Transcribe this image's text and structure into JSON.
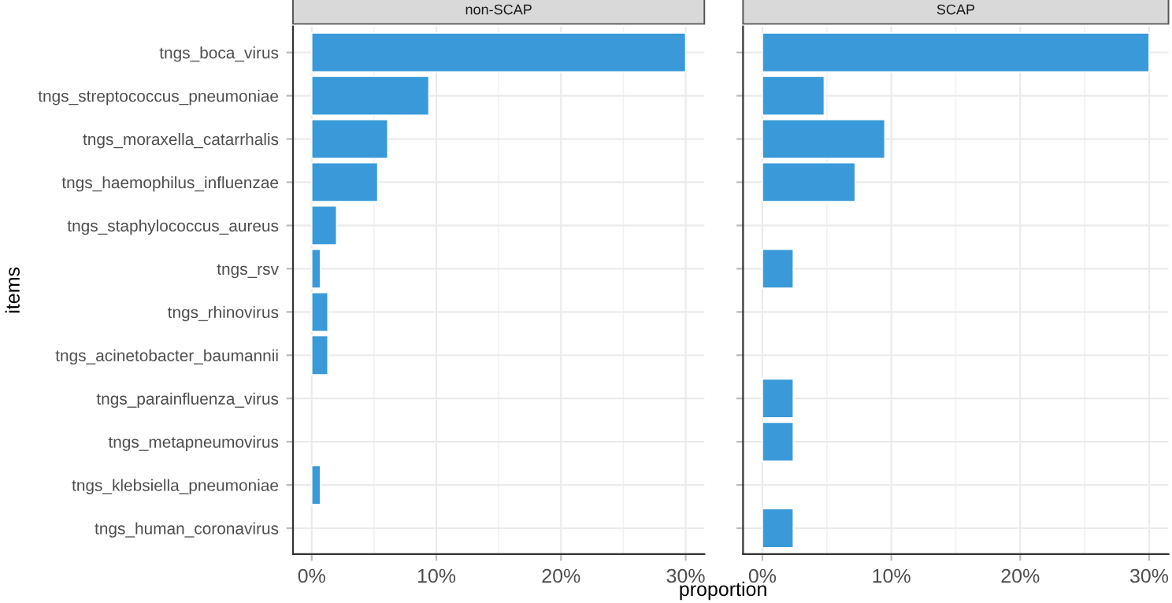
{
  "chart_data": [
    {
      "type": "bar",
      "orientation": "horizontal",
      "title": "non-SCAP",
      "ylabel": "items",
      "xlabel": "proportion",
      "categories": [
        "tngs_boca_virus",
        "tngs_streptococcus_pneumoniae",
        "tngs_moraxella_catarrhalis",
        "tngs_haemophilus_influenzae",
        "tngs_staphylococcus_aureus",
        "tngs_rsv",
        "tngs_rhinovirus",
        "tngs_acinetobacter_baumannii",
        "tngs_parainfluenza_virus",
        "tngs_metapneumovirus",
        "tngs_klebsiella_pneumoniae",
        "tngs_human_coronavirus"
      ],
      "values": [
        30,
        9.4,
        6.1,
        5.3,
        2.0,
        0.7,
        1.3,
        1.3,
        null,
        null,
        0.7,
        null
      ],
      "color": "#3a9ad9",
      "xlim": [
        -1.5,
        31.5
      ],
      "xticks": [
        {
          "value": 0,
          "label": "0%"
        },
        {
          "value": 10,
          "label": "10%"
        },
        {
          "value": 20,
          "label": "20%"
        },
        {
          "value": 30,
          "label": "30%"
        }
      ],
      "grid": true
    },
    {
      "type": "bar",
      "orientation": "horizontal",
      "title": "SCAP",
      "values": [
        30,
        4.8,
        9.5,
        7.2,
        null,
        2.4,
        null,
        null,
        2.4,
        2.4,
        null,
        2.4
      ],
      "color": "#3a9ad9",
      "xlim": [
        -1.5,
        31.5
      ],
      "xticks": [
        {
          "value": 0,
          "label": "0%"
        },
        {
          "value": 10,
          "label": "10%"
        },
        {
          "value": 20,
          "label": "20%"
        },
        {
          "value": 30,
          "label": "30%"
        }
      ],
      "grid": true,
      "tick_labels": "x"
    }
  ]
}
